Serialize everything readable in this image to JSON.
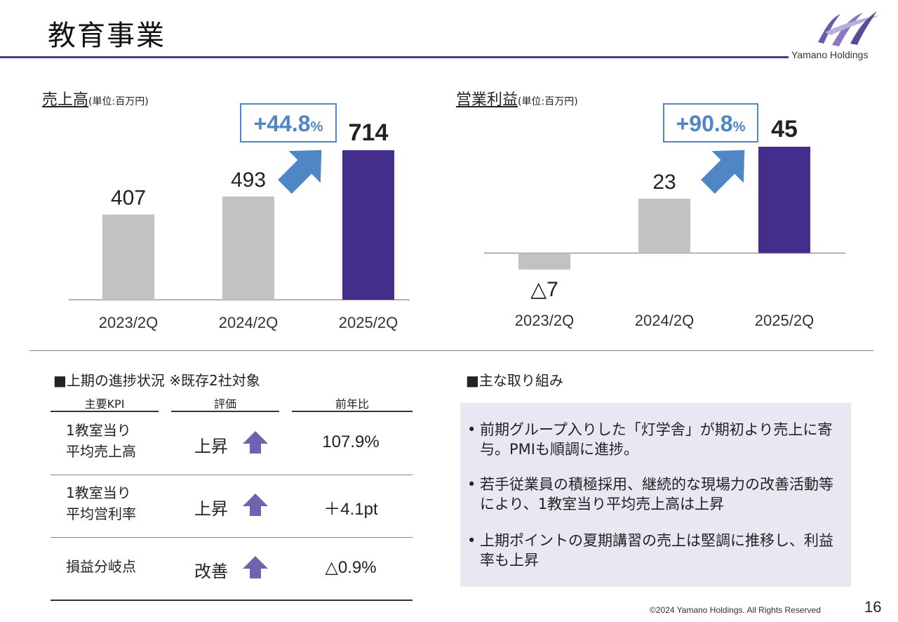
{
  "header": {
    "title": "教育事業",
    "logo_text": "Yamano Holdings"
  },
  "colors": {
    "accent": "#432e8c",
    "bar_gray": "#c2c2c2",
    "arrow_blue": "#4f86c6",
    "title_rule": "#4a3f82",
    "panel_bg": "#e9e7f2",
    "kpi_arrow": "#6f63b0"
  },
  "chart_data": [
    {
      "type": "bar",
      "title": "売上高",
      "unit": "(単位:百万円)",
      "categories": [
        "2023/2Q",
        "2024/2Q",
        "2025/2Q"
      ],
      "values": [
        407,
        493,
        714
      ],
      "value_labels": [
        "407",
        "493",
        "714"
      ],
      "highlight_index": 2,
      "change_label": "+44.8",
      "change_unit": "%",
      "ylim": [
        0,
        714
      ]
    },
    {
      "type": "bar",
      "title": "営業利益",
      "unit": "(単位:百万円)",
      "categories": [
        "2023/2Q",
        "2024/2Q",
        "2025/2Q"
      ],
      "values": [
        -7,
        23,
        45
      ],
      "value_labels": [
        "△7",
        "23",
        "45"
      ],
      "highlight_index": 2,
      "change_label": "+90.8",
      "change_unit": "%",
      "ylim": [
        -7,
        45
      ]
    }
  ],
  "kpi": {
    "heading": "■上期の進捗状況 ※既存2社対象",
    "columns": [
      "主要KPI",
      "評価",
      "前年比"
    ],
    "rows": [
      {
        "name": "1教室当り\n平均売上高",
        "eval": "上昇",
        "value": "107.9%",
        "icon": "up-arrow-icon"
      },
      {
        "name": "1教室当り\n平均営利率",
        "eval": "上昇",
        "value": "＋4.1pt",
        "icon": "up-arrow-icon"
      },
      {
        "name": "損益分岐点",
        "eval": "改善",
        "value": "△0.9%",
        "icon": "up-arrow-icon"
      }
    ]
  },
  "initiatives": {
    "heading": "■主な取り組み",
    "items": [
      "前期グループ入りした「灯学舎」が期初より売上に寄与。PMIも順調に進捗。",
      "若手従業員の積極採用、継続的な現場力の改善活動等により、1教室当り平均売上高は上昇",
      "上期ポイントの夏期講習の売上は堅調に推移し、利益率も上昇"
    ]
  },
  "footer": {
    "copyright": "©2024 Yamano Holdings. All Rights Reserved",
    "page": "16"
  }
}
